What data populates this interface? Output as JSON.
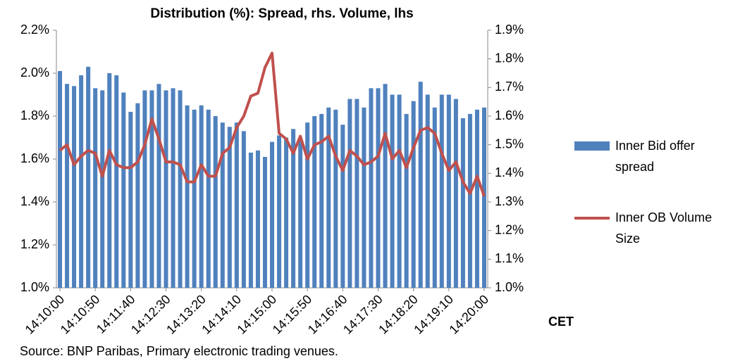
{
  "chart_data": {
    "type": "bar_line",
    "title": "Distribution (%): Spread, rhs. Volume, lhs",
    "x_unit": "CET",
    "source": "Source: BNP Paribas, Primary electronic trading venues.",
    "categories": [
      "14:10:00",
      null,
      null,
      null,
      null,
      "14:10:50",
      null,
      null,
      null,
      null,
      "14:11:40",
      null,
      null,
      null,
      null,
      "14:12:30",
      null,
      null,
      null,
      null,
      "14:13:20",
      null,
      null,
      null,
      null,
      "14:14:10",
      null,
      null,
      null,
      null,
      "14:15:00",
      null,
      null,
      null,
      null,
      "14:15:50",
      null,
      null,
      null,
      null,
      "14:16:40",
      null,
      null,
      null,
      null,
      "14:17:30",
      null,
      null,
      null,
      null,
      "14:18:20",
      null,
      null,
      null,
      null,
      "14:19:10",
      null,
      null,
      null,
      null,
      "14:20:00"
    ],
    "series": [
      {
        "name": "Inner Bid offer spread",
        "type": "bar",
        "color": "#4f81bd",
        "axis": "y",
        "values": [
          2.01,
          1.95,
          1.94,
          1.99,
          2.03,
          1.93,
          1.92,
          2.0,
          1.99,
          1.91,
          1.82,
          1.86,
          1.92,
          1.92,
          1.95,
          1.92,
          1.93,
          1.92,
          1.85,
          1.83,
          1.85,
          1.83,
          1.8,
          1.77,
          1.75,
          1.77,
          1.73,
          1.63,
          1.64,
          1.61,
          1.68,
          1.71,
          1.7,
          1.74,
          1.7,
          1.77,
          1.8,
          1.81,
          1.84,
          1.83,
          1.76,
          1.88,
          1.88,
          1.84,
          1.93,
          1.93,
          1.95,
          1.9,
          1.9,
          1.81,
          1.87,
          1.96,
          1.9,
          1.84,
          1.9,
          1.9,
          1.88,
          1.79,
          1.81,
          1.83,
          1.84
        ]
      },
      {
        "name": "Inner OB Volume Size",
        "type": "line",
        "color": "#c0504d",
        "axis": "y2",
        "values": [
          1.48,
          1.5,
          1.43,
          1.46,
          1.48,
          1.47,
          1.39,
          1.48,
          1.43,
          1.42,
          1.42,
          1.44,
          1.5,
          1.59,
          1.52,
          1.44,
          1.44,
          1.43,
          1.37,
          1.37,
          1.43,
          1.39,
          1.39,
          1.47,
          1.49,
          1.56,
          1.6,
          1.67,
          1.68,
          1.77,
          1.82,
          1.54,
          1.52,
          1.47,
          1.53,
          1.45,
          1.5,
          1.51,
          1.53,
          1.46,
          1.41,
          1.48,
          1.46,
          1.43,
          1.44,
          1.46,
          1.54,
          1.45,
          1.48,
          1.42,
          1.49,
          1.55,
          1.56,
          1.54,
          1.47,
          1.41,
          1.44,
          1.37,
          1.33,
          1.39,
          1.32
        ]
      }
    ],
    "ylim": [
      1.0,
      2.2
    ],
    "yticks": [
      {
        "value": 1.0,
        "label": "1.0%"
      },
      {
        "value": 1.2,
        "label": "1.2%"
      },
      {
        "value": 1.4,
        "label": "1.4%"
      },
      {
        "value": 1.6,
        "label": "1.6%"
      },
      {
        "value": 1.8,
        "label": "1.8%"
      },
      {
        "value": 2.0,
        "label": "2.0%"
      },
      {
        "value": 2.2,
        "label": "2.2%"
      }
    ],
    "y2lim": [
      1.0,
      1.9
    ],
    "y2ticks": [
      {
        "value": 1.0,
        "label": "1.0%"
      },
      {
        "value": 1.1,
        "label": "1.1%"
      },
      {
        "value": 1.2,
        "label": "1.2%"
      },
      {
        "value": 1.3,
        "label": "1.3%"
      },
      {
        "value": 1.4,
        "label": "1.4%"
      },
      {
        "value": 1.5,
        "label": "1.5%"
      },
      {
        "value": 1.6,
        "label": "1.6%"
      },
      {
        "value": 1.7,
        "label": "1.7%"
      },
      {
        "value": 1.8,
        "label": "1.8%"
      },
      {
        "value": 1.9,
        "label": "1.9%"
      }
    ],
    "legend": "right",
    "grid": false
  }
}
